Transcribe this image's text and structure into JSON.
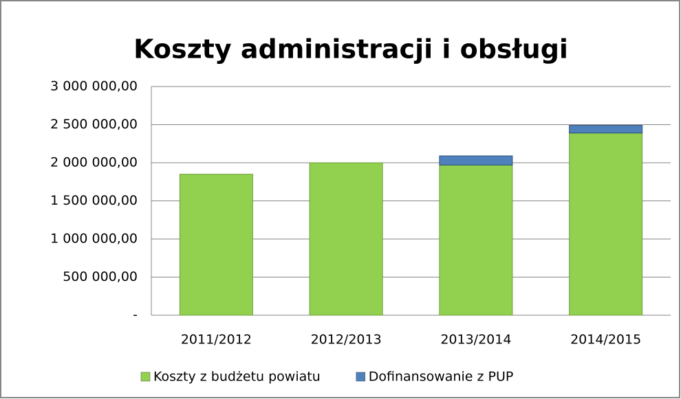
{
  "chart_data": {
    "type": "stacked_bar",
    "title": "Koszty administracji i obsługi",
    "categories": [
      "2011/2012",
      "2012/2013",
      "2013/2014",
      "2014/2015"
    ],
    "series": [
      {
        "name": "Koszty z budżetu powiatu",
        "color": "#92d050",
        "values": [
          1850000,
          2000000,
          1970000,
          2390000
        ]
      },
      {
        "name": "Dofinansowanie z PUP",
        "color": "#4f81bd",
        "values": [
          0,
          0,
          120000,
          100000
        ]
      }
    ],
    "ylim": [
      0,
      3000000
    ],
    "yticks": [
      {
        "value": 0,
        "label": "-"
      },
      {
        "value": 500000,
        "label": "500 000,00"
      },
      {
        "value": 1000000,
        "label": "1 000 000,00"
      },
      {
        "value": 1500000,
        "label": "1 500 000,00"
      },
      {
        "value": 2000000,
        "label": "2 000 000,00"
      },
      {
        "value": 2500000,
        "label": "2 500 000,00"
      },
      {
        "value": 3000000,
        "label": "3 000 000,00"
      }
    ],
    "grid": true
  }
}
